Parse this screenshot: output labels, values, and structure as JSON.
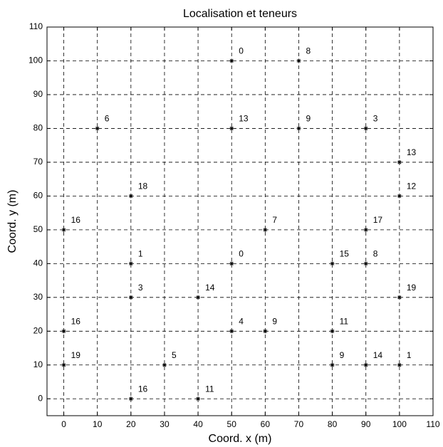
{
  "chart_data": {
    "type": "scatter",
    "title": "Localisation et teneurs",
    "x_label": "Coord. x (m)",
    "y_label": "Coord. y (m)",
    "xlim": [
      -5,
      110
    ],
    "ylim": [
      -5,
      110
    ],
    "xticks": [
      0,
      10,
      20,
      30,
      40,
      50,
      60,
      70,
      80,
      90,
      100,
      110
    ],
    "yticks": [
      0,
      10,
      20,
      30,
      40,
      50,
      60,
      70,
      80,
      90,
      100,
      110
    ],
    "grid": true,
    "color": "#000000",
    "x": [
      50,
      70,
      10,
      50,
      70,
      90,
      100,
      20,
      100,
      0,
      60,
      90,
      20,
      50,
      80,
      90,
      20,
      40,
      100,
      0,
      50,
      60,
      80,
      0,
      30,
      80,
      90,
      100,
      20,
      40
    ],
    "values": [
      100,
      100,
      80,
      80,
      80,
      80,
      70,
      60,
      60,
      50,
      50,
      50,
      40,
      40,
      40,
      40,
      30,
      30,
      30,
      20,
      20,
      20,
      20,
      10,
      10,
      10,
      10,
      10,
      0,
      0
    ],
    "value_labels": [
      "0",
      "8",
      "6",
      "13",
      "9",
      "3",
      "13",
      "18",
      "12",
      "16",
      "7",
      "17",
      "1",
      "0",
      "15",
      "8",
      "3",
      "14",
      "19",
      "16",
      "4",
      "9",
      "11",
      "19",
      "5",
      "9",
      "14",
      "1",
      "16",
      "11"
    ]
  }
}
